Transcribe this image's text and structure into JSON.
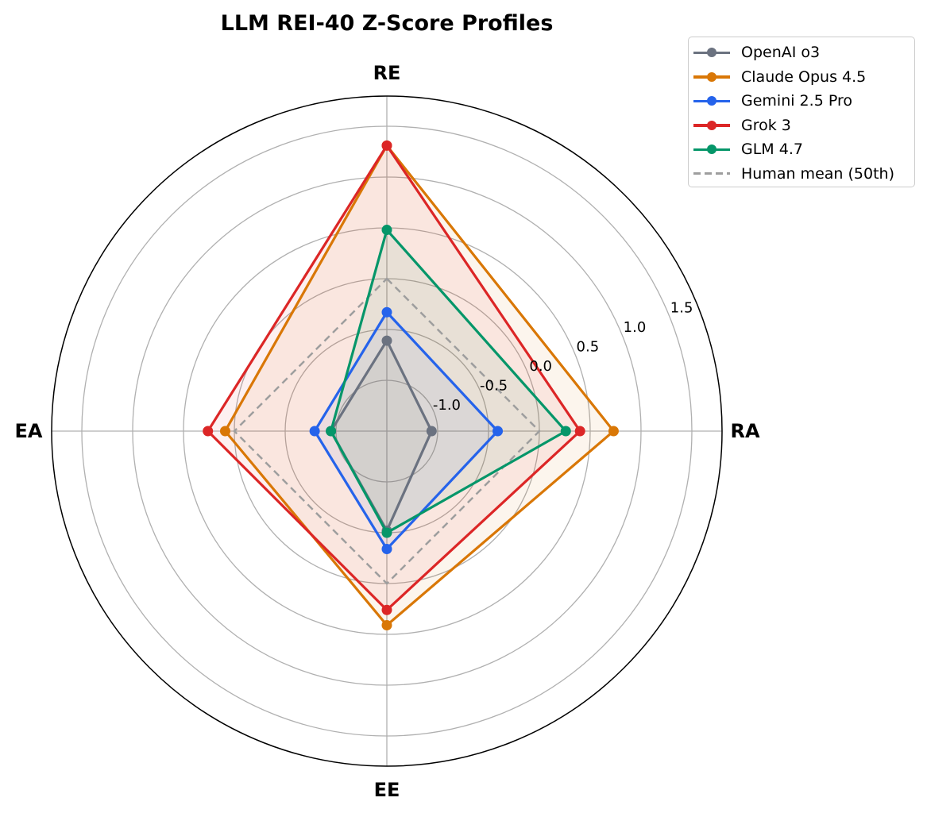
{
  "chart_data": {
    "type": "radar",
    "title": "LLM REI-40 Z-Score Profiles",
    "axes": [
      "RE",
      "RA",
      "EE",
      "EA"
    ],
    "radial_ticks": [
      -1.0,
      -0.5,
      0.0,
      0.5,
      1.0,
      1.5
    ],
    "radial_range": [
      -1.5,
      1.8
    ],
    "legend_position": "upper right, outside",
    "series": [
      {
        "name": "OpenAI o3",
        "color": "#6b7280",
        "values": [
          -0.61,
          -1.06,
          -0.52,
          -0.95
        ],
        "style": "solid-marker"
      },
      {
        "name": "Claude Opus 4.5",
        "color": "#d97706",
        "values": [
          1.31,
          0.73,
          0.41,
          0.09
        ],
        "style": "solid-marker"
      },
      {
        "name": "Gemini 2.5 Pro",
        "color": "#2563eb",
        "values": [
          -0.33,
          -0.41,
          -0.34,
          -0.79
        ],
        "style": "solid-marker"
      },
      {
        "name": "Grok 3",
        "color": "#dc2626",
        "values": [
          1.31,
          0.4,
          0.26,
          0.26
        ],
        "style": "solid-marker"
      },
      {
        "name": "GLM 4.7",
        "color": "#059669",
        "values": [
          0.48,
          0.26,
          -0.5,
          -0.95
        ],
        "style": "solid-marker"
      },
      {
        "name": "Human mean (50th)",
        "color": "#9e9e9e",
        "values": [
          0.0,
          0.0,
          0.0,
          0.0
        ],
        "style": "dashed"
      }
    ]
  }
}
